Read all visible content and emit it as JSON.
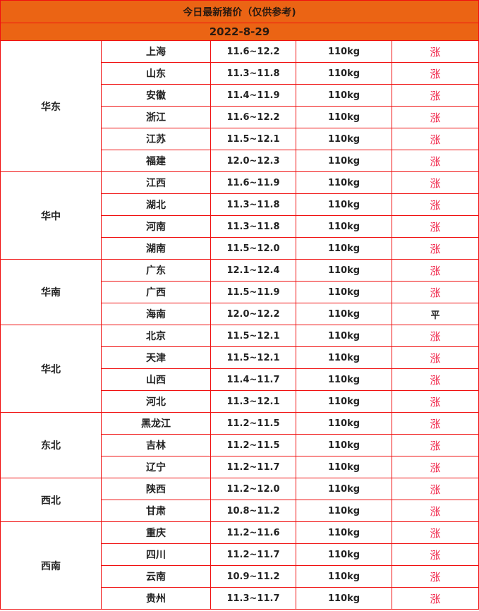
{
  "title": "今日最新猪价（仅供参考)",
  "date": "2022-8-29",
  "colors": {
    "header_bg": "#eb6414",
    "border": "#f01010",
    "up": "#f0264a"
  },
  "regions": [
    {
      "name": "华东",
      "rows": [
        {
          "province": "上海",
          "price": "11.6~12.2",
          "weight": "110kg",
          "trend": "涨"
        },
        {
          "province": "山东",
          "price": "11.3~11.8",
          "weight": "110kg",
          "trend": "涨"
        },
        {
          "province": "安徽",
          "price": "11.4~11.9",
          "weight": "110kg",
          "trend": "涨"
        },
        {
          "province": "浙江",
          "price": "11.6~12.2",
          "weight": "110kg",
          "trend": "涨"
        },
        {
          "province": "江苏",
          "price": "11.5~12.1",
          "weight": "110kg",
          "trend": "涨"
        },
        {
          "province": "福建",
          "price": "12.0~12.3",
          "weight": "110kg",
          "trend": "涨"
        }
      ]
    },
    {
      "name": "华中",
      "rows": [
        {
          "province": "江西",
          "price": "11.6~11.9",
          "weight": "110kg",
          "trend": "涨"
        },
        {
          "province": "湖北",
          "price": "11.3~11.8",
          "weight": "110kg",
          "trend": "涨"
        },
        {
          "province": "河南",
          "price": "11.3~11.8",
          "weight": "110kg",
          "trend": "涨"
        },
        {
          "province": "湖南",
          "price": "11.5~12.0",
          "weight": "110kg",
          "trend": "涨"
        }
      ]
    },
    {
      "name": "华南",
      "rows": [
        {
          "province": "广东",
          "price": "12.1~12.4",
          "weight": "110kg",
          "trend": "涨"
        },
        {
          "province": "广西",
          "price": "11.5~11.9",
          "weight": "110kg",
          "trend": "涨"
        },
        {
          "province": "海南",
          "price": "12.0~12.2",
          "weight": "110kg",
          "trend": "平"
        }
      ]
    },
    {
      "name": "华北",
      "rows": [
        {
          "province": "北京",
          "price": "11.5~12.1",
          "weight": "110kg",
          "trend": "涨"
        },
        {
          "province": "天津",
          "price": "11.5~12.1",
          "weight": "110kg",
          "trend": "涨"
        },
        {
          "province": "山西",
          "price": "11.4~11.7",
          "weight": "110kg",
          "trend": "涨"
        },
        {
          "province": "河北",
          "price": "11.3~12.1",
          "weight": "110kg",
          "trend": "涨"
        }
      ]
    },
    {
      "name": "东北",
      "rows": [
        {
          "province": "黑龙江",
          "price": "11.2~11.5",
          "weight": "110kg",
          "trend": "涨"
        },
        {
          "province": "吉林",
          "price": "11.2~11.5",
          "weight": "110kg",
          "trend": "涨"
        },
        {
          "province": "辽宁",
          "price": "11.2~11.7",
          "weight": "110kg",
          "trend": "涨"
        }
      ]
    },
    {
      "name": "西北",
      "rows": [
        {
          "province": "陕西",
          "price": "11.2~12.0",
          "weight": "110kg",
          "trend": "涨"
        },
        {
          "province": "甘肃",
          "price": "10.8~11.2",
          "weight": "110kg",
          "trend": "涨"
        }
      ]
    },
    {
      "name": "西南",
      "rows": [
        {
          "province": "重庆",
          "price": "11.2~11.6",
          "weight": "110kg",
          "trend": "涨"
        },
        {
          "province": "四川",
          "price": "11.2~11.7",
          "weight": "110kg",
          "trend": "涨"
        },
        {
          "province": "云南",
          "price": "10.9~11.2",
          "weight": "110kg",
          "trend": "涨"
        },
        {
          "province": "贵州",
          "price": "11.3~11.7",
          "weight": "110kg",
          "trend": "涨"
        }
      ]
    }
  ]
}
